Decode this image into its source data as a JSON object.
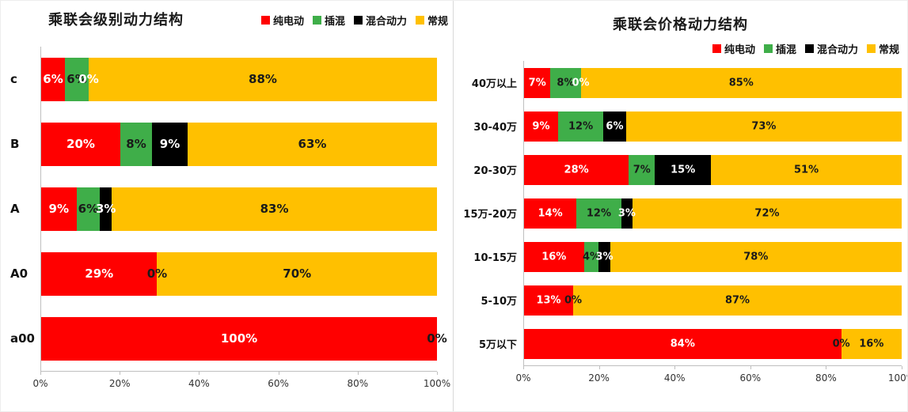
{
  "page": {
    "background": "#ffffff"
  },
  "chart_data": [
    {
      "type": "bar",
      "orientation": "horizontal",
      "stacked": true,
      "title": "乘联会级别动力结构",
      "legend_position": "top-right",
      "grid": false,
      "xlim": [
        0,
        100
      ],
      "x_ticks": [
        "0%",
        "20%",
        "40%",
        "60%",
        "80%",
        "100%"
      ],
      "categories": [
        "c",
        "B",
        "A",
        "A0",
        "a00"
      ],
      "series": [
        {
          "name": "纯电动",
          "color": "#FF0000",
          "label_color": "#FFFFFF",
          "values": [
            6,
            20,
            9,
            29,
            100
          ],
          "labels": [
            "6%",
            "20%",
            "9%",
            "29%",
            "100%"
          ]
        },
        {
          "name": "插混",
          "color": "#3FAE49",
          "label_color": "#1A1A1A",
          "values": [
            6,
            8,
            6,
            0,
            0
          ],
          "labels": [
            "6%",
            "8%",
            "6%",
            "0%",
            null
          ]
        },
        {
          "name": "混合动力",
          "color": "#000000",
          "label_color": "#FFFFFF",
          "values": [
            0,
            9,
            3,
            0,
            0
          ],
          "labels": [
            "0%",
            "9%",
            "3%",
            null,
            null
          ]
        },
        {
          "name": "常规",
          "color": "#FFC000",
          "label_color": "#1A1A1A",
          "values": [
            88,
            63,
            83,
            70,
            0
          ],
          "labels": [
            "88%",
            "63%",
            "83%",
            "70%",
            "0%"
          ]
        }
      ]
    },
    {
      "type": "bar",
      "orientation": "horizontal",
      "stacked": true,
      "title": "乘联会价格动力结构",
      "legend_position": "top-right",
      "grid": false,
      "xlim": [
        0,
        100
      ],
      "x_ticks": [
        "0%",
        "20%",
        "40%",
        "60%",
        "80%",
        "100%"
      ],
      "categories": [
        "40万以上",
        "30-40万",
        "20-30万",
        "15万-20万",
        "10-15万",
        "5-10万",
        "5万以下"
      ],
      "series": [
        {
          "name": "纯电动",
          "color": "#FF0000",
          "label_color": "#FFFFFF",
          "values": [
            7,
            9,
            28,
            14,
            16,
            13,
            84
          ],
          "labels": [
            "7%",
            "9%",
            "28%",
            "14%",
            "16%",
            "13%",
            "84%"
          ]
        },
        {
          "name": "插混",
          "color": "#3FAE49",
          "label_color": "#1A1A1A",
          "values": [
            8,
            12,
            7,
            12,
            4,
            0,
            0
          ],
          "labels": [
            "8%",
            "12%",
            "7%",
            "12%",
            "4%",
            "0%",
            "0%"
          ]
        },
        {
          "name": "混合动力",
          "color": "#000000",
          "label_color": "#FFFFFF",
          "values": [
            0,
            6,
            15,
            3,
            3,
            0,
            0
          ],
          "labels": [
            "0%",
            "6%",
            "15%",
            "3%",
            "3%",
            null,
            null
          ]
        },
        {
          "name": "常规",
          "color": "#FFC000",
          "label_color": "#1A1A1A",
          "values": [
            85,
            73,
            51,
            72,
            78,
            87,
            16
          ],
          "labels": [
            "85%",
            "73%",
            "51%",
            "72%",
            "78%",
            "87%",
            "16%"
          ]
        }
      ]
    }
  ]
}
